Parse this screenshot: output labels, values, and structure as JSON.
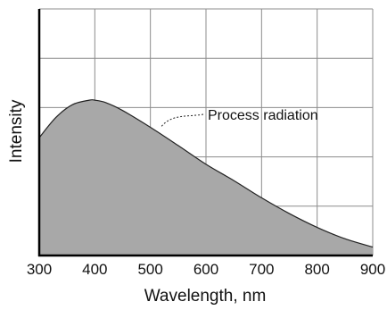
{
  "chart_data": {
    "type": "area",
    "title": "",
    "xlabel": "Wavelength, nm",
    "ylabel": "Intensity",
    "xlim": [
      300,
      900
    ],
    "ylim": [
      0,
      5
    ],
    "x_ticks": [
      "300",
      "400",
      "500",
      "600",
      "700",
      "800",
      "900"
    ],
    "grid": true,
    "series": [
      {
        "name": "",
        "color": "#a8a8a8",
        "x": [
          300,
          330,
          360,
          390,
          400,
          420,
          450,
          500,
          550,
          600,
          650,
          700,
          750,
          800,
          850,
          900
        ],
        "y": [
          2.39,
          2.8,
          3.06,
          3.15,
          3.15,
          3.1,
          2.94,
          2.6,
          2.23,
          1.85,
          1.52,
          1.17,
          0.85,
          0.57,
          0.34,
          0.17
        ]
      }
    ],
    "annotations": [
      {
        "text": "Process radiation",
        "x": 520,
        "y": 2.62
      }
    ]
  }
}
